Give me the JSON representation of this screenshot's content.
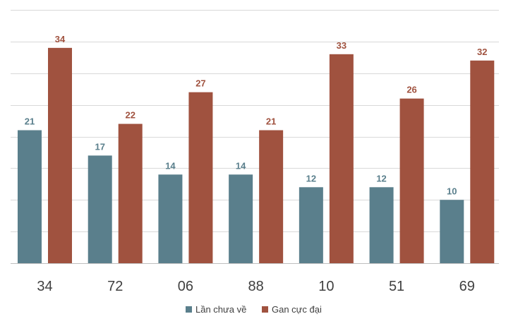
{
  "chart_data": {
    "type": "bar",
    "title": "",
    "xlabel": "",
    "ylabel": "",
    "categories": [
      "34",
      "72",
      "06",
      "88",
      "10",
      "51",
      "69"
    ],
    "series": [
      {
        "name": "Lần chưa về",
        "color": "#5a7f8c",
        "values": [
          21,
          17,
          14,
          14,
          12,
          12,
          10
        ]
      },
      {
        "name": "Gan cực đại",
        "color": "#a0523f",
        "values": [
          34,
          22,
          27,
          21,
          33,
          26,
          32
        ]
      }
    ],
    "ylim": [
      0,
      40
    ],
    "y_step": 5,
    "grid": true,
    "legend_position": "bottom",
    "data_labels": true
  }
}
